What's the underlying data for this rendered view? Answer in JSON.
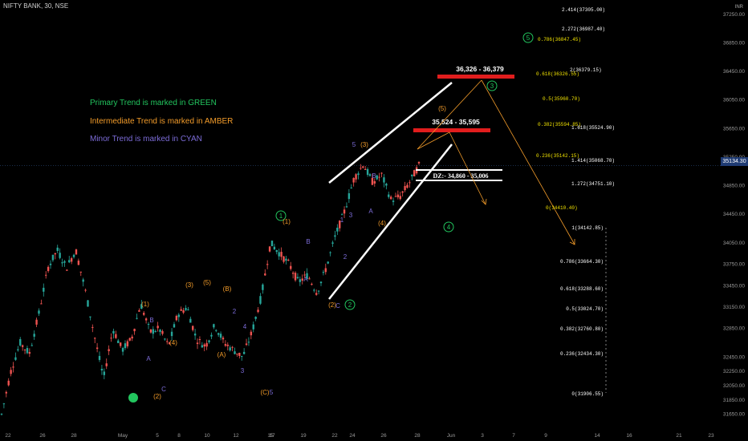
{
  "header": {
    "title": "NIFTY BANK, 30, NSE"
  },
  "legend": {
    "primary": "Primary Trend is marked in GREEN",
    "intermediate": "Intermediate Trend is marked in AMBER",
    "minor": "Minor Trend is marked in CYAN"
  },
  "colors": {
    "background": "#000000",
    "primary": "#22c55e",
    "intermediate": "#f39c2a",
    "minor": "#7c6cd8",
    "zone": "#e11d1d",
    "fib": "#f2e300",
    "up_candle": "#26a69a",
    "down_candle": "#ef5350"
  },
  "axis": {
    "currency": "INR",
    "current_price": "35134.30",
    "y_ticks": [
      "37250.00",
      "36850.00",
      "36450.00",
      "36050.00",
      "35650.00",
      "35250.00",
      "34850.00",
      "34450.00",
      "34050.00",
      "33750.00",
      "33450.00",
      "33150.00",
      "32850.00",
      "32450.00",
      "32250.00",
      "32050.00",
      "31850.00",
      "31650.00"
    ],
    "x_ticks": [
      "22",
      "26",
      "28",
      "May",
      "5",
      "8",
      "10",
      "12",
      "15",
      "17",
      "19",
      "22",
      "24",
      "26",
      "28",
      "Jun",
      "3",
      "7",
      "9",
      "14",
      "16",
      "21",
      "23"
    ]
  },
  "zones": {
    "upper_target": "36,326 - 36,379",
    "lower_target": "35,524 - 35,595",
    "demand_zone": "DZ:- 34,860 - 35,006"
  },
  "fib_right": [
    "2.414(37305.00)",
    "2.272(36987.40)",
    "0.786(36847.45)",
    "2(36379.15)",
    "0.618(36326.55)",
    "0.5(35960.70)",
    "0.382(35594.85)",
    "1.618(35524.90)",
    "0.236(35142.15)",
    "1.414(35068.70)",
    "1.272(34751.10)",
    "0(34410.40)"
  ],
  "fib_lower": [
    "1(34142.85)",
    "0.786(33664.30)",
    "0.618(33288.60)",
    "0.5(33024.70)",
    "0.382(32760.80)",
    "0.236(32434.30)",
    "0(31906.55)"
  ],
  "wave_labels": {
    "primary": [
      "1",
      "2",
      "3",
      "4",
      "5"
    ],
    "intermediate": [
      "(1)",
      "(2)",
      "(3)",
      "(4)",
      "(5)",
      "(A)",
      "(B)",
      "(C)"
    ],
    "minor": [
      "1",
      "2",
      "3",
      "4",
      "5",
      "A",
      "B",
      "C"
    ]
  },
  "chart_data": {
    "type": "candlestick",
    "title": "NIFTY BANK, 30, NSE",
    "currency": "INR",
    "last_price": 35134.3,
    "price_path": [
      [
        0,
        31650
      ],
      [
        2,
        32250
      ],
      [
        4,
        32650
      ],
      [
        6,
        32500
      ],
      [
        8,
        33050
      ],
      [
        10,
        33700
      ],
      [
        12,
        33950
      ],
      [
        14,
        33700
      ],
      [
        16,
        33950
      ],
      [
        18,
        33400
      ],
      [
        20,
        32750
      ],
      [
        22,
        32150
      ],
      [
        24,
        32850
      ],
      [
        26,
        32550
      ],
      [
        28,
        32700
      ],
      [
        30,
        33200
      ],
      [
        32,
        32800
      ],
      [
        34,
        32850
      ],
      [
        36,
        32600
      ],
      [
        38,
        33050
      ],
      [
        40,
        33150
      ],
      [
        42,
        32700
      ],
      [
        44,
        32600
      ],
      [
        46,
        32900
      ],
      [
        48,
        32650
      ],
      [
        50,
        32550
      ],
      [
        52,
        32450
      ],
      [
        54,
        32800
      ],
      [
        56,
        33300
      ],
      [
        58,
        34050
      ],
      [
        60,
        33900
      ],
      [
        62,
        33750
      ],
      [
        64,
        33500
      ],
      [
        66,
        33600
      ],
      [
        68,
        33350
      ],
      [
        70,
        33700
      ],
      [
        72,
        34150
      ],
      [
        74,
        34500
      ],
      [
        76,
        34950
      ],
      [
        78,
        35150
      ],
      [
        80,
        34900
      ],
      [
        82,
        35000
      ],
      [
        84,
        34650
      ],
      [
        86,
        34700
      ],
      [
        88,
        34900
      ],
      [
        90,
        35134
      ]
    ],
    "zones": [
      {
        "label": "36,326 - 36,379",
        "low": 36326,
        "high": 36379
      },
      {
        "label": "35,524 - 35,595",
        "low": 35524,
        "high": 35595
      },
      {
        "label": "DZ:- 34,860 - 35,006",
        "low": 34860,
        "high": 35006
      }
    ]
  }
}
